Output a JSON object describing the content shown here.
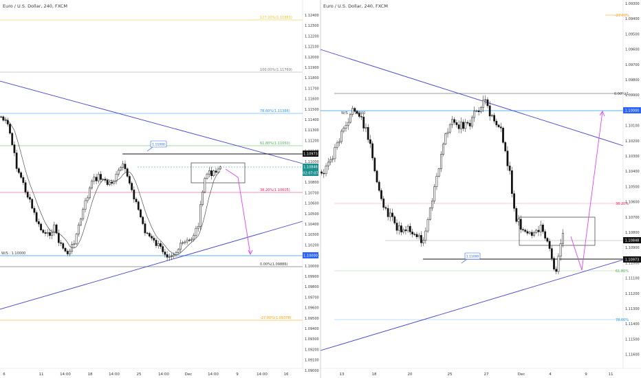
{
  "panels": [
    {
      "title": "Euro / U.S. Dollar, 240, FXCM",
      "x_labels": [
        "6",
        "11",
        "14:00",
        "18",
        "14:00",
        "25",
        "14:00",
        "Dec",
        "14:00",
        "9",
        "14:00",
        "16"
      ],
      "price_labels": [
        "1.12400",
        "1.12300",
        "1.12200",
        "1.12100",
        "1.12000",
        "1.11900",
        "1.11800",
        "1.11700",
        "1.11600",
        "1.11500",
        "1.11400",
        "1.11300",
        "1.11200",
        "1.11100",
        "1.11000",
        "1.10900",
        "1.10800",
        "1.10700",
        "1.10600",
        "1.10500",
        "1.10400",
        "1.10300",
        "1.10200",
        "1.10100",
        "1.10000",
        "1.09900",
        "1.09800",
        "1.09700",
        "1.09600",
        "1.09500",
        "1.09400",
        "1.09300",
        "1.09200",
        "1.09100",
        "1.09000"
      ],
      "price_tags": [
        {
          "text": "1.10973",
          "bg": "#111111",
          "color": "#ffffff"
        },
        {
          "text": "1.10848",
          "bg": "#1c8f8f",
          "color": "#ffffff"
        },
        {
          "text": "02:07:07",
          "bg": "#1c8f8f",
          "color": "#ffffff"
        },
        {
          "text": "1.10000",
          "bg": "#2962ff",
          "color": "#ffffff"
        }
      ],
      "fib_labels": [
        {
          "text": "127.20%(1.11881)",
          "color": "#f0c419"
        },
        {
          "text": "100.00%(1.11769)",
          "color": "#777777"
        },
        {
          "text": "78.60%(1.11366)",
          "color": "#2196f3"
        },
        {
          "text": "61.80%(1.11050)",
          "color": "#4caf50"
        },
        {
          "text": "38.20%(1.10605)",
          "color": "#e91e63"
        },
        {
          "text": "0.00%(1.09886)",
          "color": "#333333"
        },
        {
          "text": "-27.00%(1.09378)",
          "color": "#ff9800"
        }
      ],
      "ws_label": "W/S : 1.10000",
      "callout": "1.11000"
    },
    {
      "title": "Euro / U.S. Dollar, 240, FXCM",
      "x_labels": [
        "13",
        "18",
        "20",
        "25",
        "27",
        "Dec",
        "4",
        "9",
        "11"
      ],
      "price_labels": [
        "1.09300",
        "1.09400",
        "1.09500",
        "1.09600",
        "1.09700",
        "1.09800",
        "1.09900",
        "1.10000",
        "1.10100",
        "1.10200",
        "1.10300",
        "1.10400",
        "1.10500",
        "1.10600",
        "1.10700",
        "1.10800",
        "1.10900",
        "1.11000",
        "1.11100",
        "1.11200",
        "1.11300",
        "1.11400",
        "1.11500",
        "1.11600"
      ],
      "price_tags": [
        {
          "text": "1.10000",
          "bg": "#2962ff",
          "color": "#ffffff"
        },
        {
          "text": "1.10848",
          "bg": "#111111",
          "color": "#ffffff"
        },
        {
          "text": "1.10973",
          "bg": "#111111",
          "color": "#ffffff"
        }
      ],
      "fib_labels": [
        {
          "text": "-27.00%",
          "color": "#ff9800"
        },
        {
          "text": "0.00%(1.",
          "color": "#333333"
        },
        {
          "text": "38.20%",
          "color": "#e91e63"
        },
        {
          "text": "61.80%",
          "color": "#4caf50"
        },
        {
          "text": "78.60%",
          "color": "#2196f3"
        }
      ],
      "ws_label": "W/S : 1.10000",
      "callout": "1.11000"
    }
  ],
  "colors": {
    "candle": "#111111",
    "trend": "#3f3fd0",
    "projection": "#e040fb",
    "ma": "#333333"
  },
  "chart_data": [
    {
      "type": "candlestick",
      "title": "Euro / U.S. Dollar, 240, FXCM",
      "xlabel": "",
      "ylabel": "",
      "ylim": [
        1.0895,
        1.1245
      ],
      "grid": false,
      "levels": {
        "fib_127.20": 1.11881,
        "fib_100": 1.11769,
        "fib_78.60": 1.11366,
        "fib_61.80": 1.1105,
        "fib_38.20": 1.10605,
        "fib_0": 1.09886,
        "fib_-27": 1.09378,
        "ws": 1.1,
        "last": 1.10848,
        "resistance": 1.10973
      }
    },
    {
      "type": "candlestick",
      "title": "Euro / U.S. Dollar, 240, FXCM",
      "xlabel": "",
      "ylabel": "",
      "ylim": [
        1.0925,
        1.1165
      ],
      "grid": false,
      "levels": {
        "ws": 1.1,
        "last": 1.10848,
        "resistance": 1.10973
      }
    }
  ]
}
